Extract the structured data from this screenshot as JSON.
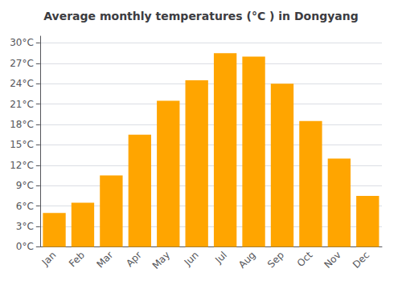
{
  "chart_data": {
    "type": "bar",
    "title": "Average monthly temperatures (°C ) in Dongyang",
    "categories": [
      "Jan",
      "Feb",
      "Mar",
      "Apr",
      "May",
      "Jun",
      "Jul",
      "Aug",
      "Sep",
      "Oct",
      "Nov",
      "Dec"
    ],
    "values": [
      5.0,
      6.5,
      10.5,
      16.5,
      21.5,
      24.5,
      28.5,
      28.0,
      24.0,
      18.5,
      13.0,
      7.5
    ],
    "color": "#FFA500",
    "ylim": [
      0,
      31
    ],
    "yticks": [
      {
        "value": 0,
        "label": "0°C"
      },
      {
        "value": 3,
        "label": "3°C"
      },
      {
        "value": 6,
        "label": "6°C"
      },
      {
        "value": 9,
        "label": "9°C"
      },
      {
        "value": 12,
        "label": "12°C"
      },
      {
        "value": 15,
        "label": "15°C"
      },
      {
        "value": 18,
        "label": "18°C"
      },
      {
        "value": 21,
        "label": "21°C"
      },
      {
        "value": 24,
        "label": "24°C"
      },
      {
        "value": 27,
        "label": "27°C"
      },
      {
        "value": 30,
        "label": "30°C"
      }
    ],
    "grid": true
  }
}
